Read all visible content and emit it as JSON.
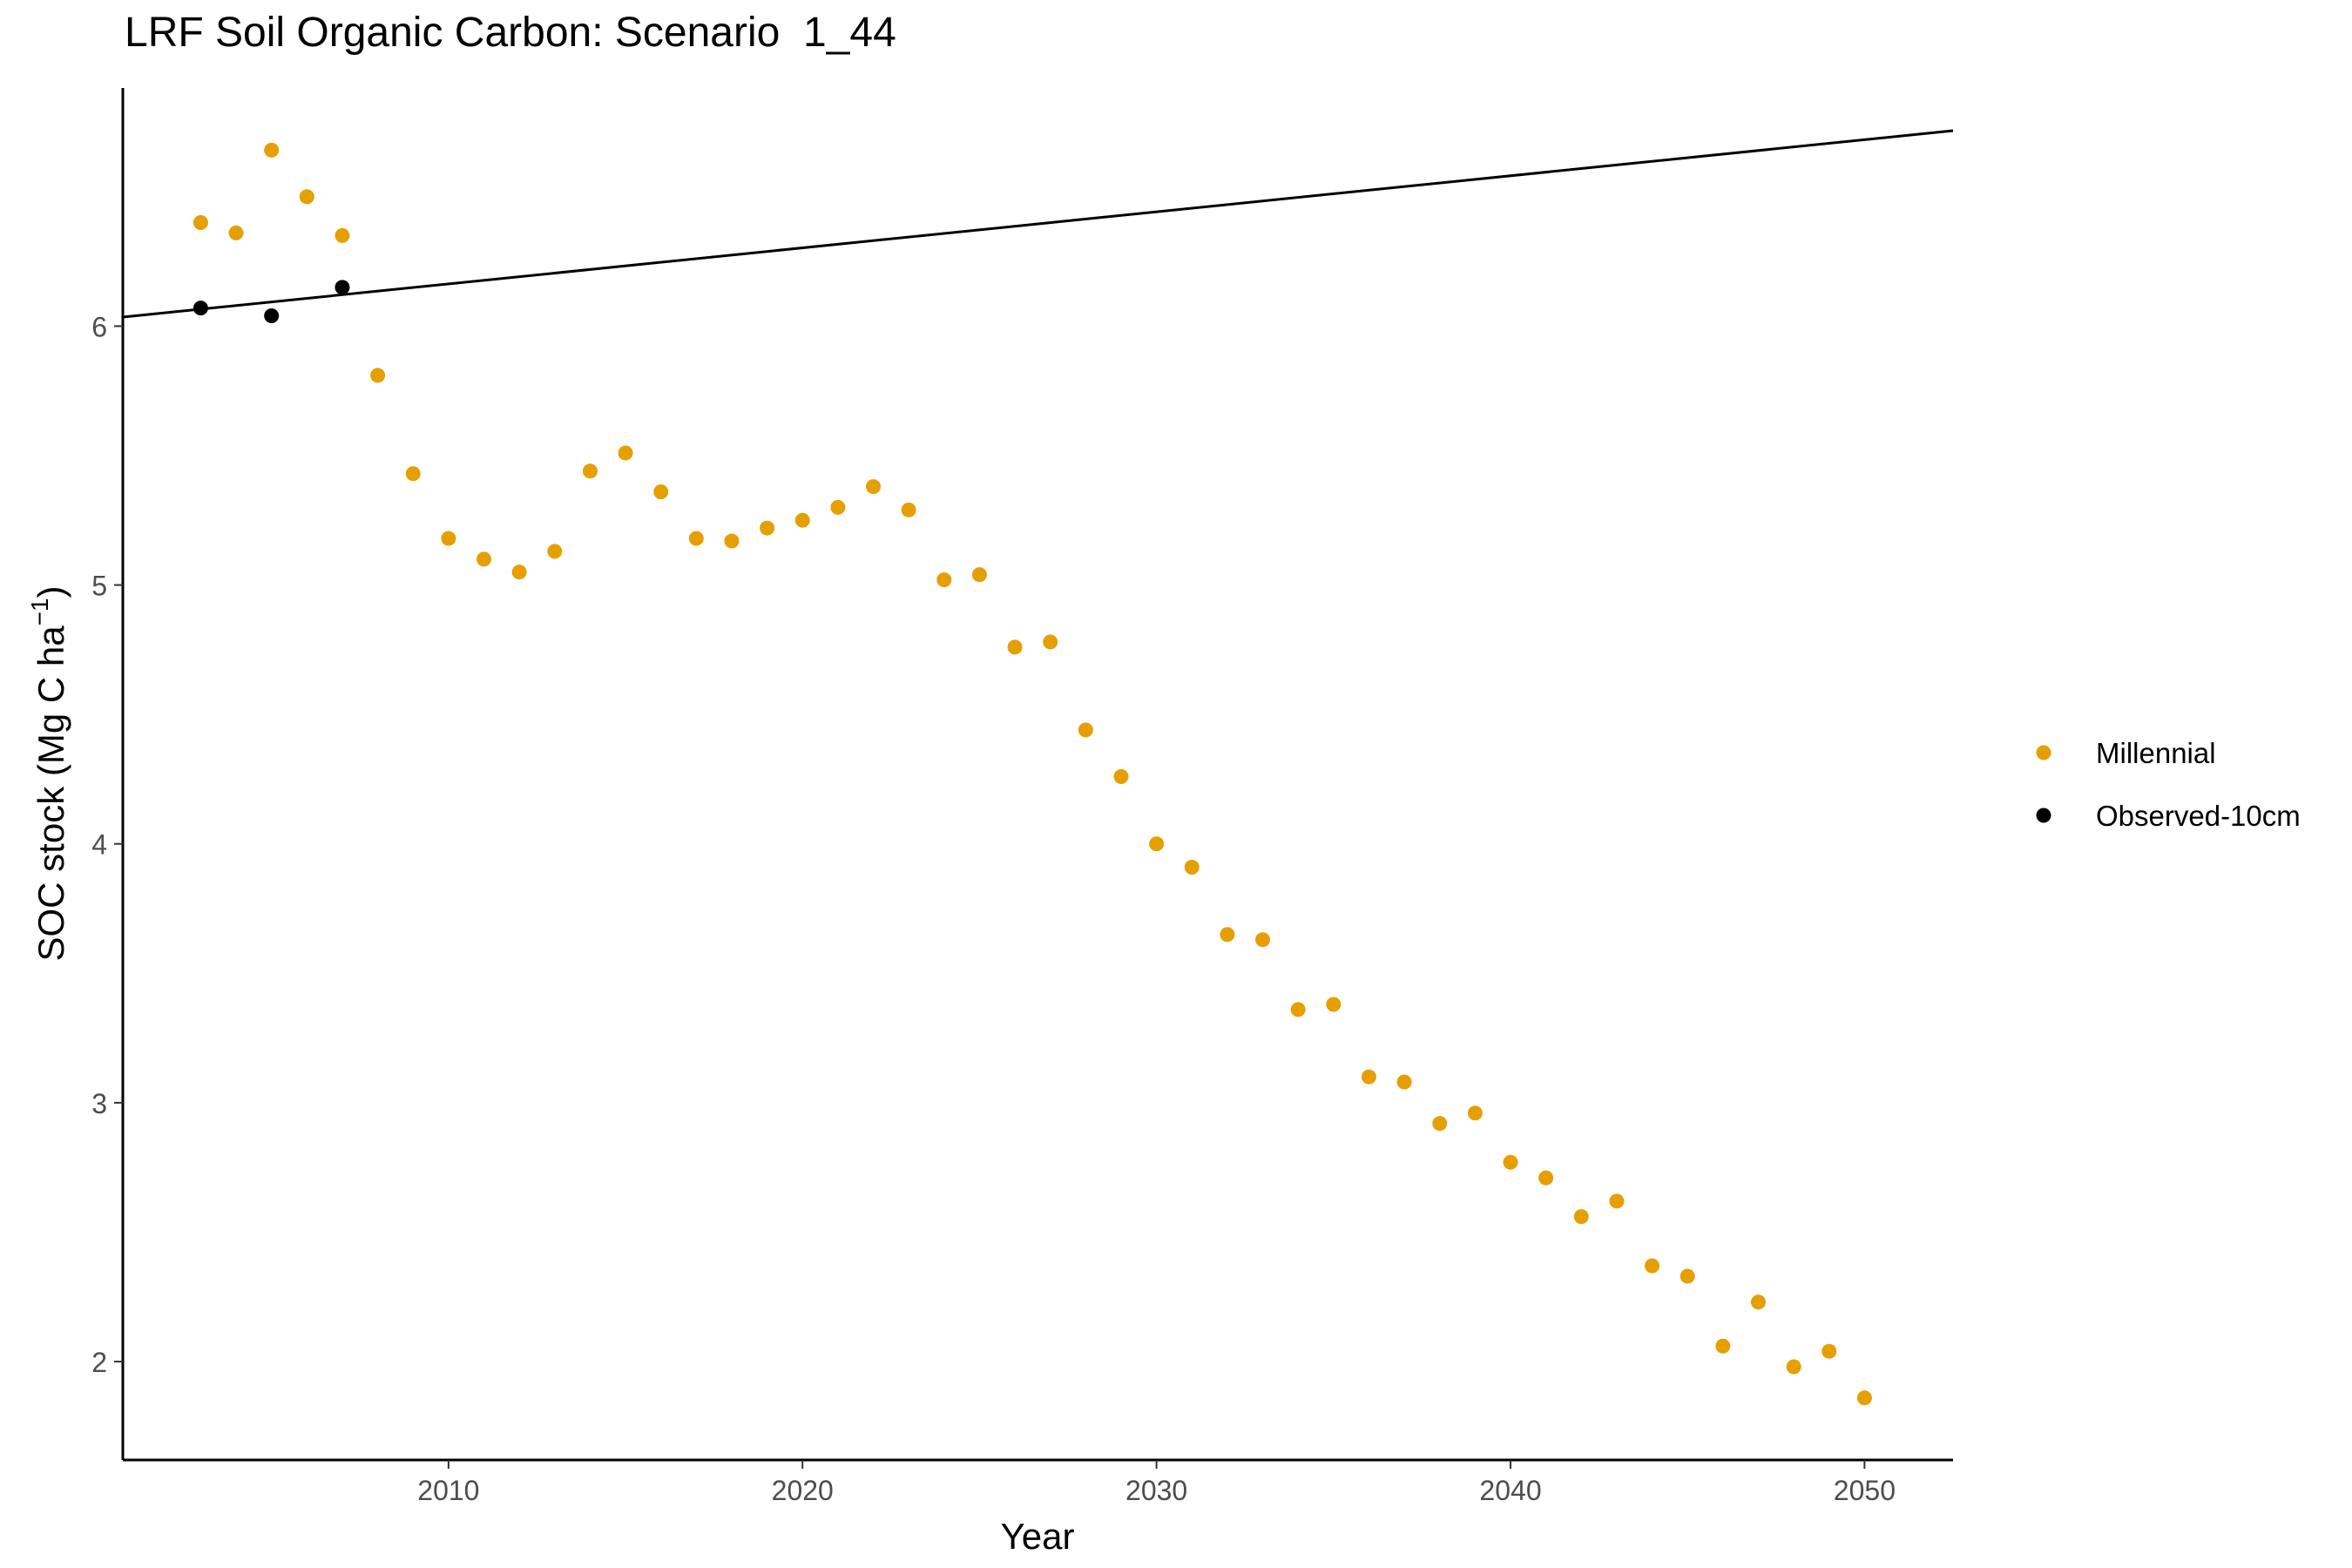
{
  "chart_data": {
    "type": "scatter",
    "title": "LRF Soil Organic Carbon: Scenario  1_44",
    "xlabel": "Year",
    "ylabel": "SOC stock (Mg C ha",
    "ylabel_sup": "−1",
    "ylabel_close": ")",
    "xlim": [
      2000.8,
      2052.5
    ],
    "ylim": [
      1.62,
      6.92
    ],
    "xticks": [
      2010,
      2020,
      2030,
      2040,
      2050
    ],
    "yticks": [
      2,
      3,
      4,
      5,
      6
    ],
    "grid": false,
    "legend_position": "right",
    "series": [
      {
        "name": "Millennial",
        "color": "#E69F00",
        "x": [
          2003,
          2004,
          2005,
          2006,
          2007,
          2008,
          2009,
          2010,
          2011,
          2012,
          2013,
          2014,
          2015,
          2016,
          2017,
          2018,
          2019,
          2020,
          2021,
          2022,
          2023,
          2024,
          2025,
          2026,
          2027,
          2028,
          2029,
          2030,
          2031,
          2032,
          2033,
          2034,
          2035,
          2036,
          2037,
          2038,
          2039,
          2040,
          2041,
          2042,
          2043,
          2044,
          2045,
          2046,
          2047,
          2048,
          2049,
          2050
        ],
        "y": [
          6.4,
          6.36,
          6.68,
          6.5,
          6.35,
          5.81,
          5.43,
          5.18,
          5.1,
          5.05,
          5.13,
          5.44,
          5.51,
          5.36,
          5.18,
          5.17,
          5.22,
          5.25,
          5.3,
          5.38,
          5.29,
          5.02,
          5.04,
          4.76,
          4.78,
          4.44,
          4.26,
          4.0,
          3.91,
          3.65,
          3.63,
          3.36,
          3.38,
          3.1,
          3.08,
          2.92,
          2.96,
          2.77,
          2.71,
          2.56,
          2.62,
          2.37,
          2.33,
          2.06,
          2.23,
          1.98,
          2.04,
          1.86
        ]
      },
      {
        "name": "Observed-10cm",
        "color": "#000000",
        "x": [
          2003,
          2005,
          2007
        ],
        "y": [
          6.07,
          6.04,
          6.15
        ]
      }
    ],
    "trend_line": {
      "color": "#000000",
      "x": [
        2000.8,
        2052.5
      ],
      "y": [
        6.035,
        6.755
      ]
    }
  }
}
